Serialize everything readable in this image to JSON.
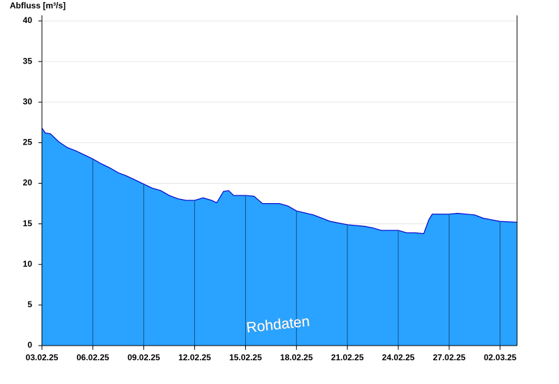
{
  "chart_data": {
    "type": "area",
    "y_label": "Abfluss [m³/s]",
    "annotation": "Rohdaten",
    "x": [
      0,
      0.2,
      0.5,
      1,
      1.5,
      2,
      2.5,
      3,
      3.5,
      4,
      4.5,
      5,
      5.5,
      6,
      6.5,
      7,
      7.5,
      8,
      8.5,
      9,
      9.5,
      10,
      10.3,
      10.7,
      11,
      11.3,
      12,
      12.5,
      13,
      14,
      14.5,
      15,
      16,
      16.5,
      17,
      18,
      19,
      19.5,
      20,
      21,
      21.5,
      22,
      22.5,
      22.8,
      23,
      24,
      24.5,
      25,
      25.5,
      26,
      26.5,
      27,
      28
    ],
    "values": [
      26.8,
      26.2,
      26.1,
      25.1,
      24.4,
      24.0,
      23.5,
      23.0,
      22.4,
      21.9,
      21.3,
      20.9,
      20.4,
      19.9,
      19.4,
      19.1,
      18.5,
      18.1,
      17.9,
      17.9,
      18.2,
      17.9,
      17.6,
      19.0,
      19.1,
      18.5,
      18.5,
      18.4,
      17.5,
      17.5,
      17.2,
      16.6,
      16.1,
      15.7,
      15.3,
      14.9,
      14.7,
      14.5,
      14.2,
      14.2,
      13.9,
      13.9,
      13.8,
      15.5,
      16.2,
      16.2,
      16.3,
      16.2,
      16.1,
      15.7,
      15.5,
      15.3,
      15.2
    ],
    "color": "#29a3ff",
    "line_color": "#0000cc",
    "xlim": [
      0,
      28
    ],
    "xticks": [
      {
        "value": 0,
        "label": "03.02.25"
      },
      {
        "value": 3,
        "label": "06.02.25"
      },
      {
        "value": 6,
        "label": "09.02.25"
      },
      {
        "value": 9,
        "label": "12.02.25"
      },
      {
        "value": 12,
        "label": "15.02.25"
      },
      {
        "value": 15,
        "label": "18.02.25"
      },
      {
        "value": 18,
        "label": "21.02.25"
      },
      {
        "value": 21,
        "label": "24.02.25"
      },
      {
        "value": 24,
        "label": "27.02.25"
      },
      {
        "value": 27,
        "label": "02.03.25"
      }
    ],
    "ylim": [
      0,
      40
    ],
    "yticks": [
      0,
      5,
      10,
      15,
      20,
      25,
      30,
      35,
      40
    ],
    "grid": true
  }
}
